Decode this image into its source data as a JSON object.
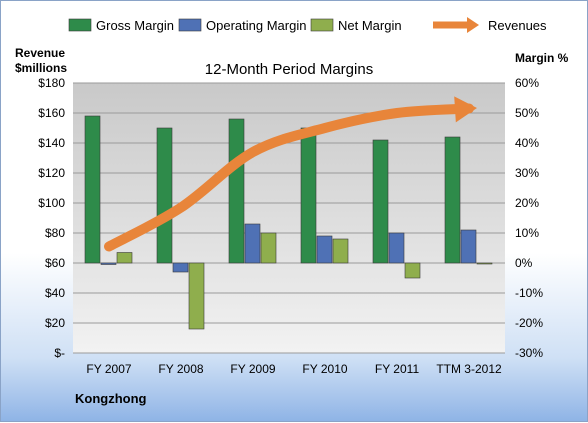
{
  "chart_data": {
    "type": "bar",
    "title": "12-Month Period Margins",
    "company": "Kongzhong",
    "left_axis_label": [
      "Revenue",
      "$millions"
    ],
    "right_axis_label": "Margin %",
    "left_ticks": [
      "$-",
      "$20",
      "$40",
      "$60",
      "$80",
      "$100",
      "$120",
      "$140",
      "$160",
      "$180"
    ],
    "right_ticks": [
      "-30%",
      "-20%",
      "-10%",
      "0%",
      "10%",
      "20%",
      "30%",
      "40%",
      "50%",
      "60%"
    ],
    "ylim_left": [
      0,
      180
    ],
    "ylim_right": [
      -30,
      60
    ],
    "categories": [
      "FY 2007",
      "FY 2008",
      "FY 2009",
      "FY 2010",
      "FY 2011",
      "TTM 3-2012"
    ],
    "series": [
      {
        "name": "Gross Margin",
        "axis": "right",
        "color": "#2e8b4a",
        "values": [
          49,
          45,
          48,
          45,
          41,
          42
        ]
      },
      {
        "name": "Operating Margin",
        "axis": "right",
        "color": "#4f71b5",
        "values": [
          -0.5,
          -3,
          13,
          9,
          10,
          11
        ]
      },
      {
        "name": "Net Margin",
        "axis": "right",
        "color": "#8fae4d",
        "values": [
          3.5,
          -22,
          10,
          8,
          -5,
          0
        ]
      },
      {
        "name": "Revenues",
        "axis": "left",
        "type": "line",
        "color": "#e8853a",
        "values": [
          71,
          97,
          134,
          150,
          160,
          163
        ]
      }
    ],
    "legend_placement": "top",
    "grid": true
  }
}
